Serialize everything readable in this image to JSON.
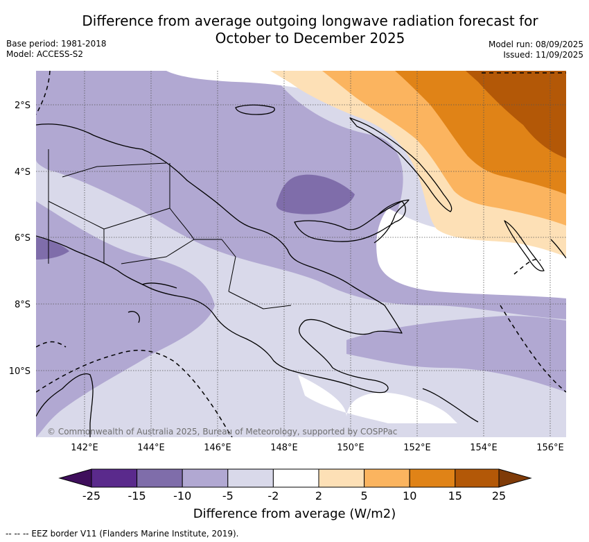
{
  "header": {
    "title_line1": "Difference from average outgoing longwave radiation forecast for",
    "title_line2": "October to December 2025",
    "base_period": "Base period: 1981-2018",
    "model": "Model: ACCESS-S2",
    "model_run": "Model run: 08/09/2025",
    "issued": "Issued: 11/09/2025"
  },
  "map": {
    "lat_labels": [
      "2°S",
      "4°S",
      "6°S",
      "8°S",
      "10°S"
    ],
    "lon_labels": [
      "142°E",
      "144°E",
      "146°E",
      "148°E",
      "150°E",
      "152°E",
      "154°E",
      "156°E"
    ],
    "copyright": "© Commonwealth of Australia 2025, Bureau of Meteorology, supported by COSPPac"
  },
  "colorbar": {
    "ticks": [
      "-25",
      "-15",
      "-10",
      "-5",
      "-2",
      "2",
      "5",
      "10",
      "15",
      "25"
    ],
    "colors": [
      "#3f0f5c",
      "#5a2a8c",
      "#7f6daa",
      "#b1a8d2",
      "#d9d9ea",
      "#ffffff",
      "#fde0b6",
      "#fbb45f",
      "#e08317",
      "#b35807",
      "#7f3b08"
    ],
    "title": "Difference from average (W/m2)"
  },
  "footnote": "--  --  -- EEZ border V11 (Flanders Marine Institute, 2019)."
}
